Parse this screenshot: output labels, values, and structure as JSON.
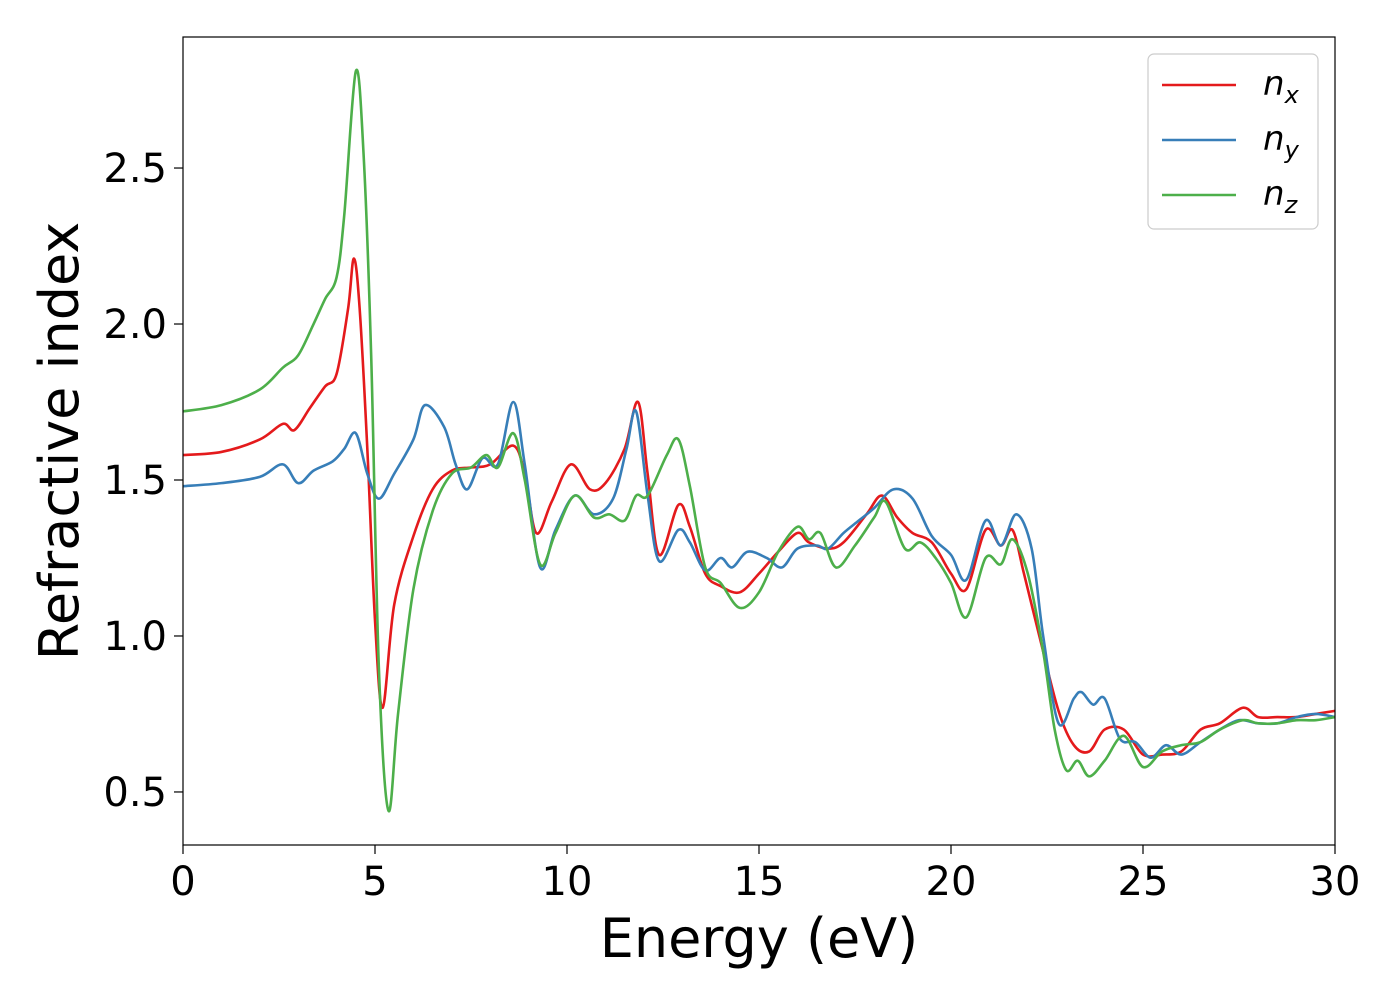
{
  "chart_data": {
    "type": "line",
    "title": "",
    "xlabel": "Energy (eV)",
    "ylabel": "Refractive index",
    "xlim": [
      0,
      30
    ],
    "ylim": [
      0.33,
      2.92
    ],
    "xticks": [
      0,
      5,
      10,
      15,
      20,
      25,
      30
    ],
    "xtick_labels": [
      "0",
      "5",
      "10",
      "15",
      "20",
      "25",
      "30"
    ],
    "yticks": [
      0.5,
      1.0,
      1.5,
      2.0,
      2.5
    ],
    "ytick_labels": [
      "0.5",
      "1.0",
      "1.5",
      "2.0",
      "2.5"
    ],
    "grid": false,
    "legend_position": "top-right",
    "series": [
      {
        "name": "n_x",
        "legend_base": "n",
        "legend_sub": "x",
        "color": "#e41a1c",
        "points": [
          [
            0,
            1.58
          ],
          [
            1,
            1.59
          ],
          [
            2,
            1.63
          ],
          [
            2.6,
            1.68
          ],
          [
            2.9,
            1.66
          ],
          [
            3.3,
            1.73
          ],
          [
            3.7,
            1.8
          ],
          [
            4.0,
            1.84
          ],
          [
            4.3,
            2.05
          ],
          [
            4.45,
            2.21
          ],
          [
            4.6,
            2.05
          ],
          [
            4.8,
            1.6
          ],
          [
            5.0,
            1.05
          ],
          [
            5.2,
            0.77
          ],
          [
            5.5,
            1.1
          ],
          [
            6.0,
            1.32
          ],
          [
            6.5,
            1.47
          ],
          [
            7.0,
            1.53
          ],
          [
            7.5,
            1.54
          ],
          [
            8.0,
            1.55
          ],
          [
            8.6,
            1.61
          ],
          [
            8.9,
            1.52
          ],
          [
            9.2,
            1.33
          ],
          [
            9.6,
            1.43
          ],
          [
            10.1,
            1.55
          ],
          [
            10.6,
            1.47
          ],
          [
            11.0,
            1.49
          ],
          [
            11.5,
            1.6
          ],
          [
            11.85,
            1.75
          ],
          [
            12.1,
            1.52
          ],
          [
            12.4,
            1.26
          ],
          [
            12.9,
            1.42
          ],
          [
            13.2,
            1.35
          ],
          [
            13.6,
            1.2
          ],
          [
            14.0,
            1.16
          ],
          [
            14.5,
            1.14
          ],
          [
            15.0,
            1.2
          ],
          [
            15.5,
            1.27
          ],
          [
            16.0,
            1.33
          ],
          [
            16.3,
            1.3
          ],
          [
            16.8,
            1.28
          ],
          [
            17.2,
            1.3
          ],
          [
            17.8,
            1.39
          ],
          [
            18.2,
            1.45
          ],
          [
            18.6,
            1.38
          ],
          [
            19.0,
            1.33
          ],
          [
            19.5,
            1.3
          ],
          [
            20.0,
            1.2
          ],
          [
            20.4,
            1.15
          ],
          [
            20.9,
            1.34
          ],
          [
            21.3,
            1.29
          ],
          [
            21.6,
            1.34
          ],
          [
            21.9,
            1.2
          ],
          [
            22.3,
            1.0
          ],
          [
            22.8,
            0.76
          ],
          [
            23.2,
            0.65
          ],
          [
            23.6,
            0.63
          ],
          [
            24.0,
            0.7
          ],
          [
            24.5,
            0.7
          ],
          [
            25.0,
            0.62
          ],
          [
            25.5,
            0.62
          ],
          [
            26.0,
            0.63
          ],
          [
            26.5,
            0.7
          ],
          [
            27.0,
            0.72
          ],
          [
            27.6,
            0.77
          ],
          [
            28.0,
            0.74
          ],
          [
            28.5,
            0.74
          ],
          [
            29.0,
            0.74
          ],
          [
            29.5,
            0.75
          ],
          [
            30.0,
            0.76
          ]
        ]
      },
      {
        "name": "n_y",
        "legend_base": "n",
        "legend_sub": "y",
        "color": "#377eb8",
        "points": [
          [
            0,
            1.48
          ],
          [
            1,
            1.49
          ],
          [
            2,
            1.51
          ],
          [
            2.6,
            1.55
          ],
          [
            3.0,
            1.49
          ],
          [
            3.4,
            1.53
          ],
          [
            3.9,
            1.56
          ],
          [
            4.2,
            1.6
          ],
          [
            4.5,
            1.65
          ],
          [
            4.8,
            1.52
          ],
          [
            5.1,
            1.44
          ],
          [
            5.5,
            1.52
          ],
          [
            6.0,
            1.63
          ],
          [
            6.3,
            1.74
          ],
          [
            6.8,
            1.67
          ],
          [
            7.1,
            1.55
          ],
          [
            7.4,
            1.47
          ],
          [
            7.8,
            1.57
          ],
          [
            8.2,
            1.55
          ],
          [
            8.6,
            1.75
          ],
          [
            8.9,
            1.55
          ],
          [
            9.3,
            1.22
          ],
          [
            9.7,
            1.34
          ],
          [
            10.2,
            1.45
          ],
          [
            10.7,
            1.39
          ],
          [
            11.2,
            1.44
          ],
          [
            11.55,
            1.6
          ],
          [
            11.8,
            1.72
          ],
          [
            12.1,
            1.45
          ],
          [
            12.4,
            1.24
          ],
          [
            12.9,
            1.34
          ],
          [
            13.2,
            1.3
          ],
          [
            13.6,
            1.21
          ],
          [
            14.0,
            1.25
          ],
          [
            14.3,
            1.22
          ],
          [
            14.7,
            1.27
          ],
          [
            15.2,
            1.25
          ],
          [
            15.6,
            1.22
          ],
          [
            16.0,
            1.28
          ],
          [
            16.5,
            1.29
          ],
          [
            16.8,
            1.28
          ],
          [
            17.2,
            1.33
          ],
          [
            17.6,
            1.37
          ],
          [
            18.0,
            1.41
          ],
          [
            18.5,
            1.47
          ],
          [
            19.0,
            1.44
          ],
          [
            19.5,
            1.32
          ],
          [
            20.0,
            1.26
          ],
          [
            20.4,
            1.18
          ],
          [
            20.9,
            1.37
          ],
          [
            21.3,
            1.29
          ],
          [
            21.7,
            1.39
          ],
          [
            22.1,
            1.28
          ],
          [
            22.4,
            1.0
          ],
          [
            22.8,
            0.72
          ],
          [
            23.2,
            0.8
          ],
          [
            23.4,
            0.82
          ],
          [
            23.7,
            0.78
          ],
          [
            24.0,
            0.8
          ],
          [
            24.4,
            0.67
          ],
          [
            24.8,
            0.66
          ],
          [
            25.2,
            0.61
          ],
          [
            25.6,
            0.65
          ],
          [
            26.0,
            0.62
          ],
          [
            26.5,
            0.66
          ],
          [
            27.0,
            0.7
          ],
          [
            27.5,
            0.73
          ],
          [
            28.0,
            0.72
          ],
          [
            28.5,
            0.72
          ],
          [
            29.0,
            0.74
          ],
          [
            29.5,
            0.75
          ],
          [
            30.0,
            0.74
          ]
        ]
      },
      {
        "name": "n_z",
        "legend_base": "n",
        "legend_sub": "z",
        "color": "#4daf4a",
        "points": [
          [
            0,
            1.72
          ],
          [
            1,
            1.74
          ],
          [
            2,
            1.79
          ],
          [
            2.6,
            1.86
          ],
          [
            3.0,
            1.9
          ],
          [
            3.4,
            2.0
          ],
          [
            3.7,
            2.08
          ],
          [
            4.0,
            2.15
          ],
          [
            4.2,
            2.35
          ],
          [
            4.5,
            2.81
          ],
          [
            4.7,
            2.55
          ],
          [
            4.9,
            1.9
          ],
          [
            5.1,
            0.9
          ],
          [
            5.35,
            0.44
          ],
          [
            5.6,
            0.75
          ],
          [
            6.0,
            1.15
          ],
          [
            6.5,
            1.4
          ],
          [
            7.0,
            1.52
          ],
          [
            7.5,
            1.54
          ],
          [
            7.9,
            1.58
          ],
          [
            8.2,
            1.54
          ],
          [
            8.6,
            1.65
          ],
          [
            8.9,
            1.5
          ],
          [
            9.3,
            1.23
          ],
          [
            9.7,
            1.33
          ],
          [
            10.2,
            1.45
          ],
          [
            10.7,
            1.38
          ],
          [
            11.1,
            1.39
          ],
          [
            11.5,
            1.37
          ],
          [
            11.8,
            1.45
          ],
          [
            12.1,
            1.45
          ],
          [
            12.6,
            1.58
          ],
          [
            12.9,
            1.63
          ],
          [
            13.2,
            1.48
          ],
          [
            13.6,
            1.22
          ],
          [
            14.0,
            1.17
          ],
          [
            14.5,
            1.09
          ],
          [
            15.0,
            1.14
          ],
          [
            15.5,
            1.27
          ],
          [
            16.0,
            1.35
          ],
          [
            16.3,
            1.31
          ],
          [
            16.6,
            1.33
          ],
          [
            17.0,
            1.22
          ],
          [
            17.5,
            1.29
          ],
          [
            18.0,
            1.38
          ],
          [
            18.3,
            1.43
          ],
          [
            18.8,
            1.28
          ],
          [
            19.2,
            1.3
          ],
          [
            19.6,
            1.25
          ],
          [
            20.0,
            1.17
          ],
          [
            20.4,
            1.06
          ],
          [
            20.9,
            1.25
          ],
          [
            21.3,
            1.23
          ],
          [
            21.6,
            1.31
          ],
          [
            22.0,
            1.2
          ],
          [
            22.4,
            0.95
          ],
          [
            22.7,
            0.7
          ],
          [
            23.0,
            0.57
          ],
          [
            23.3,
            0.6
          ],
          [
            23.6,
            0.55
          ],
          [
            24.0,
            0.6
          ],
          [
            24.5,
            0.68
          ],
          [
            25.0,
            0.58
          ],
          [
            25.5,
            0.63
          ],
          [
            26.0,
            0.65
          ],
          [
            26.5,
            0.66
          ],
          [
            27.0,
            0.7
          ],
          [
            27.6,
            0.73
          ],
          [
            28.0,
            0.72
          ],
          [
            28.5,
            0.72
          ],
          [
            29.0,
            0.73
          ],
          [
            29.5,
            0.73
          ],
          [
            30.0,
            0.74
          ]
        ]
      }
    ]
  }
}
